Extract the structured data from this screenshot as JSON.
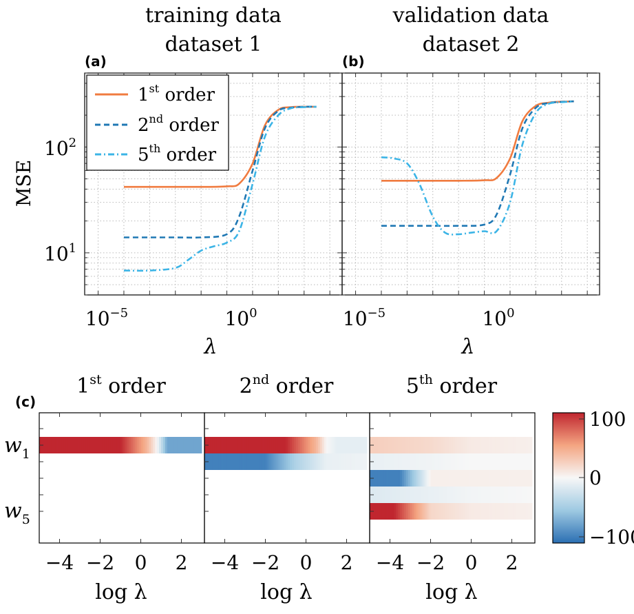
{
  "panels_top": [
    {
      "label": "(a)",
      "title_line1": "training data",
      "title_line2": "dataset 1",
      "ylabel": "MSE",
      "xlabel": "λ",
      "x_tick_bases": [
        "10",
        "10"
      ],
      "x_tick_exps": [
        "−5",
        "0"
      ],
      "y_tick_bases": [
        "10",
        "10"
      ],
      "y_tick_exps": [
        "1",
        "2"
      ]
    },
    {
      "label": "(b)",
      "title_line1": "validation data",
      "title_line2": "dataset 2",
      "xlabel": "λ",
      "x_tick_bases": [
        "10",
        "10"
      ],
      "x_tick_exps": [
        "−5",
        "0"
      ]
    }
  ],
  "legend": [
    {
      "base": "1",
      "sup": "st",
      "rest": " order",
      "color": "#f07b3f",
      "dash": "solid"
    },
    {
      "base": "2",
      "sup": "nd",
      "rest": " order",
      "color": "#1f78b4",
      "dash": "dashed"
    },
    {
      "base": "5",
      "sup": "th",
      "rest": " order",
      "color": "#3bb4e6",
      "dash": "dashdot"
    }
  ],
  "panel_c": {
    "label": "(c)",
    "titles": [
      {
        "base": "1",
        "sup": "st",
        "rest": " order"
      },
      {
        "base": "2",
        "sup": "nd",
        "rest": " order"
      },
      {
        "base": "5",
        "sup": "th",
        "rest": " order"
      }
    ],
    "xlabel": "log λ",
    "x_ticks": [
      "−4",
      "−2",
      "0",
      "2"
    ],
    "y_labels": [
      {
        "base": "w",
        "sub": "1"
      },
      {
        "base": "w",
        "sub": "5"
      }
    ],
    "colorbar_ticks": [
      "100",
      "0",
      "−100"
    ]
  },
  "chart_data": [
    {
      "type": "line",
      "panel": "a",
      "title": "training data dataset 1",
      "xlabel": "λ",
      "ylabel": "MSE",
      "xscale": "log",
      "yscale": "log",
      "xlim": [
        3e-07,
        3000
      ],
      "ylim": [
        4,
        500
      ],
      "grid": true,
      "legend_position": "top-left",
      "series": [
        {
          "name": "1st order",
          "x": [
            1e-05,
            0.0001,
            0.001,
            0.01,
            0.1,
            0.3,
            1,
            3,
            10,
            30,
            100,
            300
          ],
          "y": [
            42,
            42,
            42,
            42,
            42.5,
            45,
            70,
            160,
            225,
            238,
            240,
            240
          ]
        },
        {
          "name": "2nd order",
          "x": [
            1e-05,
            0.0001,
            0.001,
            0.01,
            0.1,
            0.3,
            1,
            3,
            10,
            30,
            100,
            300
          ],
          "y": [
            14,
            14,
            14,
            14,
            15,
            22,
            60,
            150,
            220,
            235,
            240,
            240
          ]
        },
        {
          "name": "5th order",
          "x": [
            1e-05,
            0.0001,
            0.001,
            0.003,
            0.01,
            0.03,
            0.1,
            0.3,
            1,
            3,
            10,
            30,
            100,
            300
          ],
          "y": [
            6.8,
            6.8,
            7.2,
            8.5,
            10.5,
            11.5,
            12.5,
            16,
            45,
            125,
            200,
            232,
            238,
            240
          ]
        }
      ]
    },
    {
      "type": "line",
      "panel": "b",
      "title": "validation data dataset 2",
      "xlabel": "λ",
      "xscale": "log",
      "yscale": "log",
      "xlim": [
        3e-07,
        3000
      ],
      "ylim": [
        4,
        500
      ],
      "grid": true,
      "series": [
        {
          "name": "1st order",
          "x": [
            1e-05,
            0.0001,
            0.001,
            0.01,
            0.1,
            0.3,
            1,
            3,
            10,
            30,
            100,
            300
          ],
          "y": [
            48,
            48,
            48,
            48,
            48.5,
            51,
            78,
            175,
            245,
            262,
            268,
            270
          ]
        },
        {
          "name": "2nd order",
          "x": [
            1e-05,
            0.0001,
            0.001,
            0.01,
            0.1,
            0.3,
            1,
            3,
            10,
            30,
            100,
            300
          ],
          "y": [
            18,
            18,
            18,
            18,
            18.5,
            23,
            55,
            150,
            235,
            260,
            267,
            270
          ]
        },
        {
          "name": "5th order",
          "x": [
            1e-05,
            3e-05,
            0.0001,
            0.0003,
            0.001,
            0.003,
            0.01,
            0.03,
            0.1,
            0.3,
            1,
            3,
            10,
            30,
            100,
            300
          ],
          "y": [
            80,
            78,
            70,
            45,
            22,
            15.5,
            15,
            15.5,
            16,
            16,
            30,
            105,
            210,
            255,
            265,
            270
          ]
        }
      ]
    },
    {
      "type": "heatmap",
      "panel": "c",
      "xlabel": "log λ",
      "xlim": [
        -5,
        3
      ],
      "colorbar": {
        "min": -100,
        "max": 100,
        "ticks": [
          100,
          0,
          -100
        ]
      },
      "subplots": [
        {
          "title": "1st order",
          "rows": [
            {
              "x": [
                -5,
                -1,
                0.3,
                0.8,
                1.3,
                3
              ],
              "v": [
                100,
                100,
                40,
                0,
                -70,
                -70
              ]
            }
          ]
        },
        {
          "title": "2nd order",
          "rows": [
            {
              "x": [
                -5,
                -1,
                0.5,
                1,
                1.5,
                3
              ],
              "v": [
                100,
                100,
                40,
                0,
                -10,
                -10
              ]
            },
            {
              "x": [
                -5,
                -2,
                -0.5,
                1,
                3
              ],
              "v": [
                -90,
                -90,
                -40,
                -8,
                -5
              ]
            }
          ]
        },
        {
          "title": "5th order",
          "rows": [
            {
              "x": [
                -5,
                -2,
                0,
                3
              ],
              "v": [
                25,
                18,
                8,
                5
              ]
            },
            {
              "x": [
                -5,
                -2,
                0,
                3
              ],
              "v": [
                -8,
                -4,
                0,
                0
              ]
            },
            {
              "x": [
                -5,
                -3.5,
                -2,
                0,
                3
              ],
              "v": [
                -90,
                -90,
                5,
                5,
                5
              ]
            },
            {
              "x": [
                -5,
                -2,
                0,
                3
              ],
              "v": [
                -15,
                -8,
                -3,
                0
              ]
            },
            {
              "x": [
                -5,
                -3.8,
                -2,
                0,
                3
              ],
              "v": [
                100,
                100,
                20,
                8,
                5
              ]
            }
          ]
        }
      ]
    }
  ]
}
